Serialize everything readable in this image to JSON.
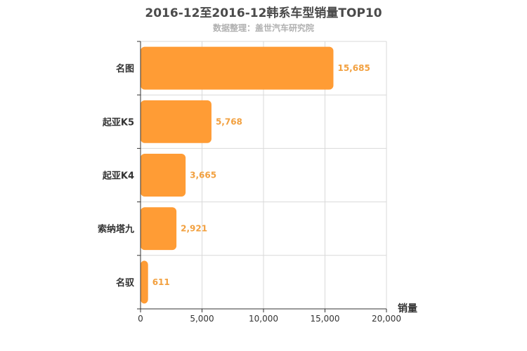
{
  "title": "2016-12至2016-12韩系车型销量TOP10",
  "subtitle": "数据整理：盖世汽车研究院",
  "colors": {
    "bar": "#ff9c35",
    "value_label": "#f2a03f"
  },
  "chart_data": {
    "type": "bar",
    "orientation": "horizontal",
    "title": "2016-12至2016-12韩系车型销量TOP10",
    "subtitle": "数据整理：盖世汽车研究院",
    "categories": [
      "名图",
      "起亚K5",
      "起亚K4",
      "索纳塔九",
      "名驭"
    ],
    "values": [
      15685,
      5768,
      3665,
      2921,
      611
    ],
    "value_labels": [
      "15,685",
      "5,768",
      "3,665",
      "2,921",
      "611"
    ],
    "xlabel": "销量",
    "ylabel": "",
    "xlim": [
      0,
      20000
    ],
    "xticks": [
      0,
      5000,
      10000,
      15000,
      20000
    ],
    "xtick_labels": [
      "0",
      "5,000",
      "10,000",
      "15,000",
      "20,000"
    ],
    "grid": true
  }
}
